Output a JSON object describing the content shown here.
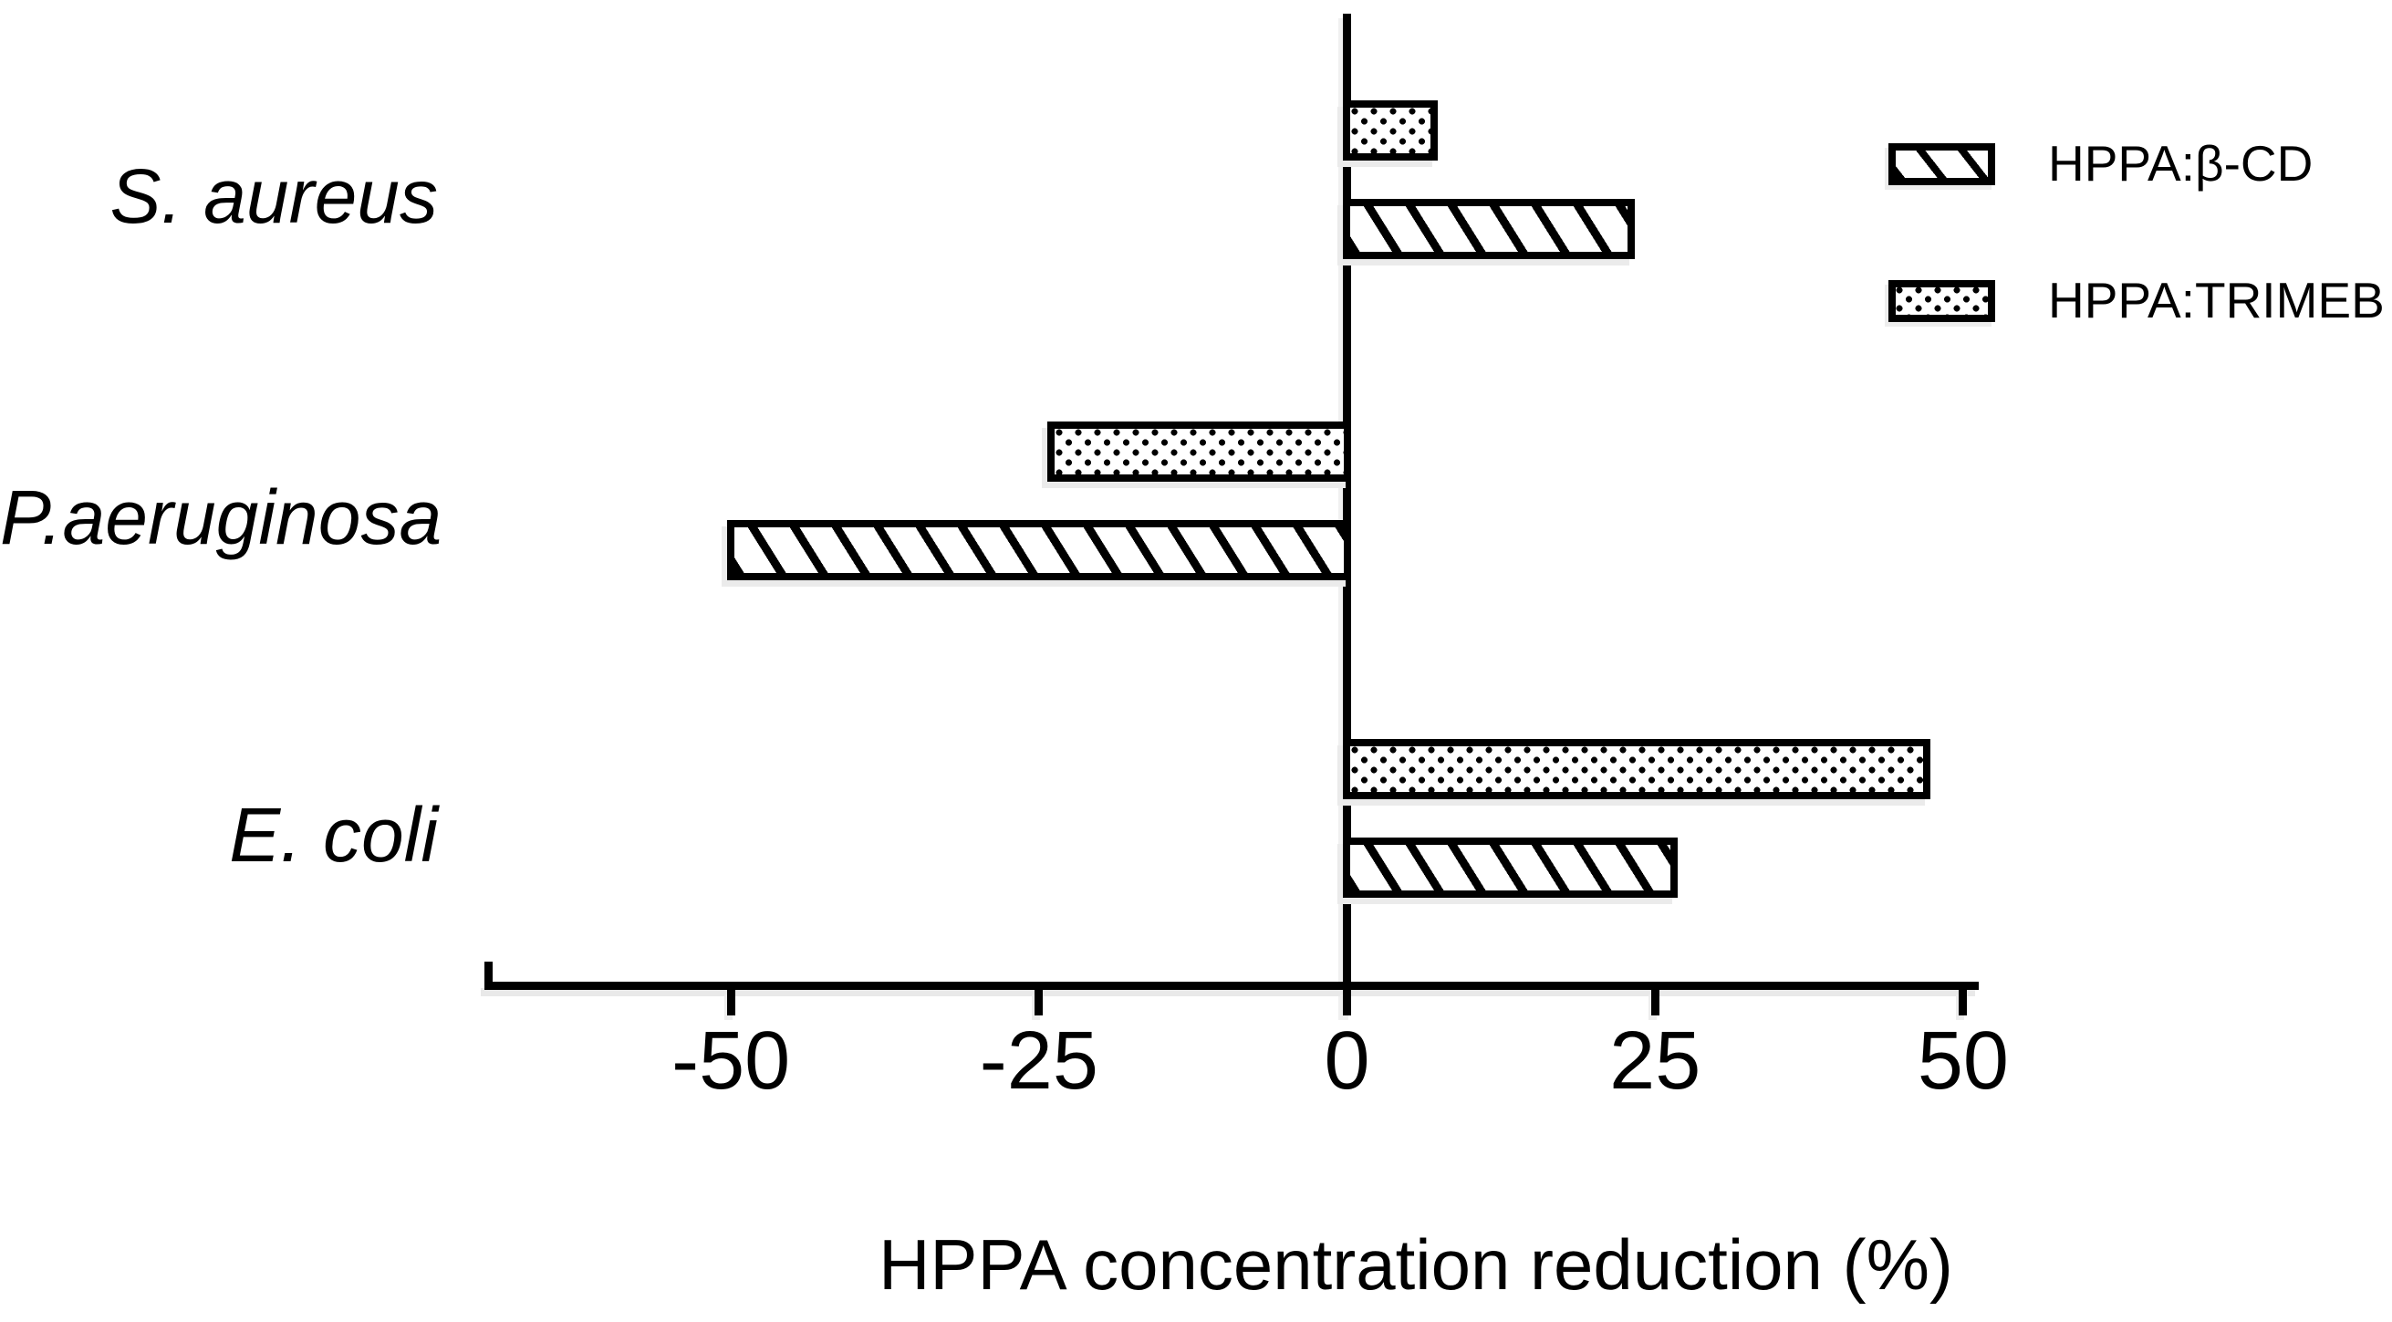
{
  "figure": {
    "background": "#ffffff",
    "ink_color": "#000000",
    "shadow_color": "#ebebeb"
  },
  "legend": {
    "items": [
      {
        "label": "HPPA:β-CD",
        "pattern": "hatch",
        "swatch": "diagonal-hatch-swatch"
      },
      {
        "label": "HPPA:TRIMEB",
        "pattern": "dots",
        "swatch": "dotted-swatch"
      }
    ]
  },
  "chart_data": {
    "type": "bar",
    "orientation": "horizontal",
    "title": "",
    "xlabel": "HPPA concentration reduction (%)",
    "ylabel": "",
    "categories": [
      "S. aureus",
      "P.aeruginosa",
      "E. coli"
    ],
    "series": [
      {
        "name": "HPPA:β-CD",
        "pattern": "hatch",
        "values": [
          23,
          -50,
          26.5
        ]
      },
      {
        "name": "HPPA:TRIMEB",
        "pattern": "dots",
        "values": [
          7,
          -24,
          47
        ]
      }
    ],
    "x_ticks": [
      -50,
      -25,
      0,
      25,
      50
    ],
    "xlim": [
      -70,
      50.6
    ],
    "grid": false,
    "legend_position": "top-right",
    "bar_fill": "#ffffff",
    "bar_border": "#000000"
  }
}
